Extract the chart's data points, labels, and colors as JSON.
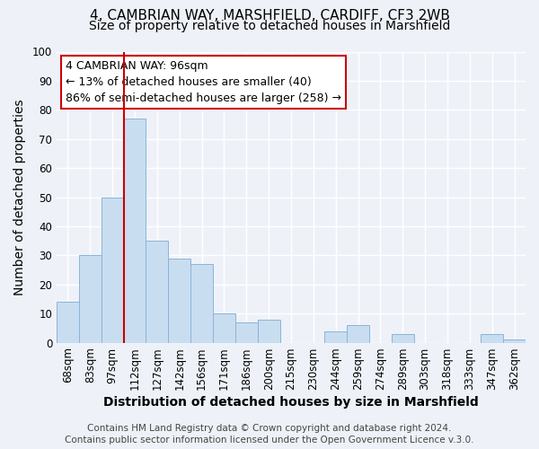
{
  "title": "4, CAMBRIAN WAY, MARSHFIELD, CARDIFF, CF3 2WB",
  "subtitle": "Size of property relative to detached houses in Marshfield",
  "xlabel": "Distribution of detached houses by size in Marshfield",
  "ylabel": "Number of detached properties",
  "bar_labels": [
    "68sqm",
    "83sqm",
    "97sqm",
    "112sqm",
    "127sqm",
    "142sqm",
    "156sqm",
    "171sqm",
    "186sqm",
    "200sqm",
    "215sqm",
    "230sqm",
    "244sqm",
    "259sqm",
    "274sqm",
    "289sqm",
    "303sqm",
    "318sqm",
    "333sqm",
    "347sqm",
    "362sqm"
  ],
  "bar_values": [
    14,
    30,
    50,
    77,
    35,
    29,
    27,
    10,
    7,
    8,
    0,
    0,
    4,
    6,
    0,
    3,
    0,
    0,
    0,
    3,
    1
  ],
  "bar_color": "#c9ddf0",
  "bar_edgecolor": "#8ab4d8",
  "ylim": [
    0,
    100
  ],
  "vline_color": "#cc0000",
  "vline_x": 2.5,
  "annotation_title": "4 CAMBRIAN WAY: 96sqm",
  "annotation_line1": "← 13% of detached houses are smaller (40)",
  "annotation_line2": "86% of semi-detached houses are larger (258) →",
  "annotation_box_edgecolor": "#cc0000",
  "footer_line1": "Contains HM Land Registry data © Crown copyright and database right 2024.",
  "footer_line2": "Contains public sector information licensed under the Open Government Licence v.3.0.",
  "background_color": "#eef2f8",
  "grid_color": "#ffffff",
  "title_fontsize": 11,
  "subtitle_fontsize": 10,
  "axis_label_fontsize": 10,
  "tick_fontsize": 8.5,
  "footer_fontsize": 7.5,
  "annotation_fontsize": 9
}
